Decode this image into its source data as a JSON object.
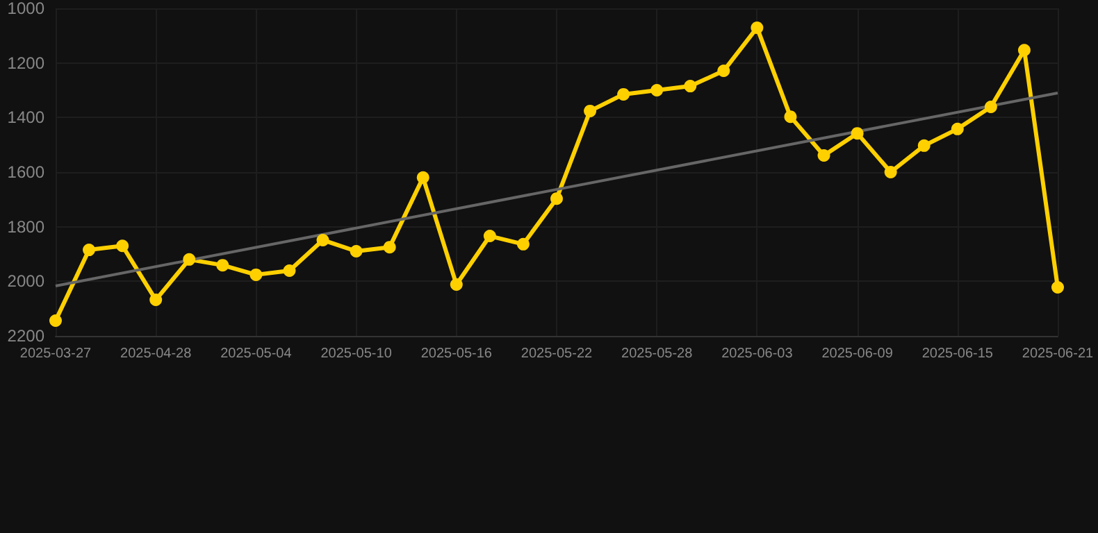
{
  "chart_data": {
    "type": "line",
    "categories": [
      "2025-03-27",
      null,
      null,
      "2025-04-28",
      null,
      null,
      "2025-05-04",
      null,
      null,
      "2025-05-10",
      null,
      null,
      "2025-05-16",
      null,
      null,
      "2025-05-22",
      null,
      null,
      "2025-05-28",
      null,
      null,
      "2025-06-03",
      null,
      null,
      "2025-06-09",
      null,
      null,
      "2025-06-15",
      null,
      null,
      "2025-06-21"
    ],
    "series": [
      {
        "color": "#ffd000",
        "marker": "circle",
        "values": [
          2144,
          1885,
          1870,
          2068,
          1920,
          1941,
          1976,
          1961,
          1849,
          1890,
          1875,
          1620,
          2012,
          1834,
          1864,
          1697,
          1376,
          1315,
          1300,
          1285,
          1229,
          1071,
          1397,
          1539,
          1458,
          1600,
          1503,
          1442,
          1361,
          1153,
          2022
        ]
      },
      {
        "color": "#666666",
        "marker": "none",
        "values": [
          2017,
          null,
          null,
          null,
          null,
          null,
          null,
          null,
          null,
          null,
          null,
          null,
          null,
          null,
          null,
          null,
          null,
          null,
          null,
          null,
          null,
          null,
          null,
          null,
          null,
          null,
          null,
          null,
          null,
          null,
          1310
        ]
      }
    ],
    "ylim": [
      2200,
      1000
    ],
    "yticks": [
      1000,
      1200,
      1400,
      1600,
      1800,
      2000,
      2200
    ],
    "grid": true
  }
}
